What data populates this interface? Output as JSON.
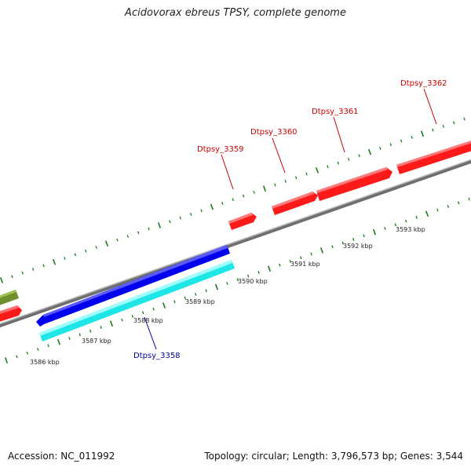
{
  "title": "Acidovorax ebreus TPSY, complete genome",
  "footer": {
    "accession": "Accession: NC_011992",
    "stats": "Topology: circular; Length: 3,796,573 bp; Genes: 3,544"
  },
  "colors": {
    "forward_gene": "#ff1a1a",
    "reverse_gene": "#1a1aff",
    "cds_feature": "#22ffff",
    "other_gene": "#6f8f2a",
    "backbone": "#8a8a8a",
    "tick": "#1f7a1f",
    "forward_label": "#cc0000",
    "reverse_label": "#0000aa"
  },
  "scale_ticks": [
    {
      "label": "3586 kbp"
    },
    {
      "label": "3587 kbp"
    },
    {
      "label": "3588 kbp"
    },
    {
      "label": "3589 kbp"
    },
    {
      "label": "3590 kbp"
    },
    {
      "label": "3591 kbp"
    },
    {
      "label": "3592 kbp"
    },
    {
      "label": "3593 kbp"
    }
  ],
  "gene_labels": [
    {
      "text": "Dtpsy_3358",
      "strand": "reverse"
    },
    {
      "text": "Dtpsy_3359",
      "strand": "forward"
    },
    {
      "text": "Dtpsy_3360",
      "strand": "forward"
    },
    {
      "text": "Dtpsy_3361",
      "strand": "forward"
    },
    {
      "text": "Dtpsy_3362",
      "strand": "forward"
    }
  ]
}
